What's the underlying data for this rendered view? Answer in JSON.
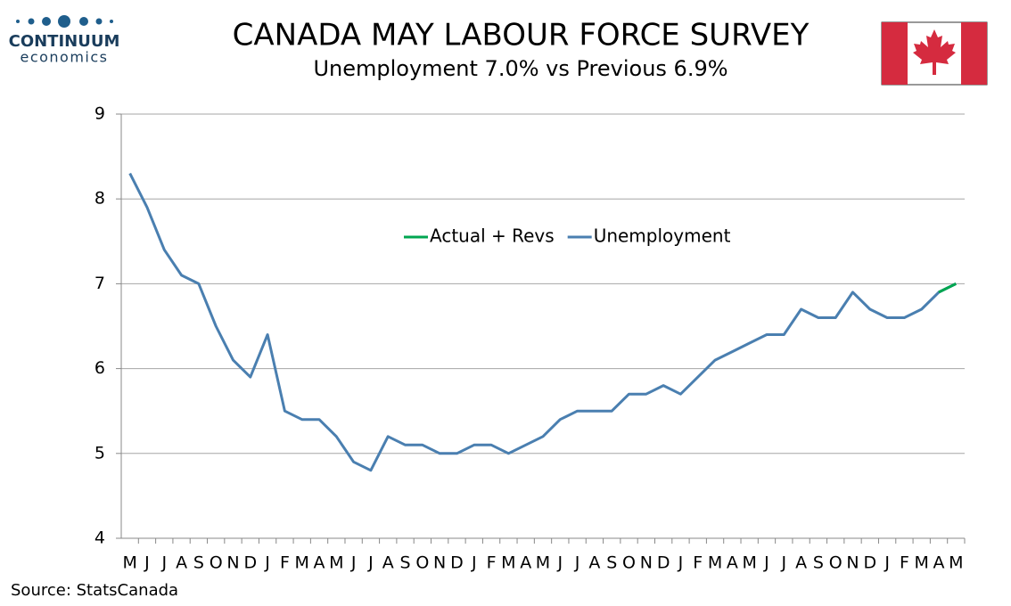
{
  "chart_data": {
    "type": "line",
    "title": "CANADA MAY LABOUR FORCE SURVEY",
    "subtitle": "Unemployment  7.0% vs Previous 6.9%",
    "source": "Source: StatsCanada",
    "logo": {
      "name": "CONTINUUM",
      "tagline": "economics"
    },
    "categories": [
      "M",
      "J",
      "J",
      "A",
      "S",
      "O",
      "N",
      "D",
      "J",
      "F",
      "M",
      "A",
      "M",
      "J",
      "J",
      "A",
      "S",
      "O",
      "N",
      "D",
      "J",
      "F",
      "M",
      "A",
      "M",
      "J",
      "J",
      "A",
      "S",
      "O",
      "N",
      "D",
      "J",
      "F",
      "M",
      "A",
      "M",
      "J",
      "J",
      "A",
      "S",
      "O",
      "N",
      "D",
      "J",
      "F",
      "M",
      "A",
      "M"
    ],
    "series": [
      {
        "name": "Actual + Revs",
        "color": "#00a650",
        "values": [
          null,
          null,
          null,
          null,
          null,
          null,
          null,
          null,
          null,
          null,
          null,
          null,
          null,
          null,
          null,
          null,
          null,
          null,
          null,
          null,
          null,
          null,
          null,
          null,
          null,
          null,
          null,
          null,
          null,
          null,
          null,
          null,
          null,
          null,
          null,
          null,
          null,
          null,
          null,
          null,
          null,
          null,
          null,
          null,
          null,
          null,
          null,
          6.9,
          7.0
        ]
      },
      {
        "name": "Unemployment",
        "color": "#4a7fb0",
        "values": [
          8.3,
          7.9,
          7.4,
          7.1,
          7.0,
          6.5,
          6.1,
          5.9,
          6.4,
          5.5,
          5.4,
          5.4,
          5.2,
          4.9,
          4.8,
          5.2,
          5.1,
          5.1,
          5.0,
          5.0,
          5.1,
          5.1,
          5.0,
          5.1,
          5.2,
          5.4,
          5.5,
          5.5,
          5.5,
          5.7,
          5.7,
          5.8,
          5.7,
          5.9,
          6.1,
          6.2,
          6.3,
          6.4,
          6.4,
          6.7,
          6.6,
          6.6,
          6.9,
          6.7,
          6.6,
          6.6,
          6.7,
          6.9,
          7.0
        ]
      }
    ],
    "ylim": [
      4,
      9
    ],
    "yticks": [
      4,
      5,
      6,
      7,
      8,
      9
    ],
    "grid": true,
    "legend": "top"
  }
}
